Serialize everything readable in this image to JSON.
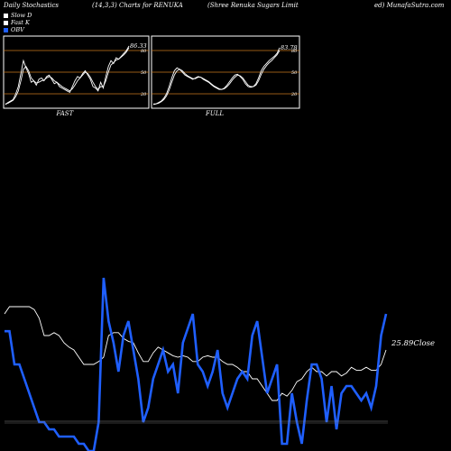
{
  "header": {
    "left": "Daily Stochastics",
    "center_left": "(14,3,3) Charts for RENUKA",
    "center_right": "(Shree  Renuka  Sugars Limit",
    "right": "ed) MunafaSutra.com"
  },
  "legend": [
    {
      "label": "Slow  D",
      "color": "#ffffff"
    },
    {
      "label": "Fast K",
      "color": "#ffffff"
    },
    {
      "label": "OBV",
      "color": "#1f5fff"
    }
  ],
  "colors": {
    "background": "#000000",
    "grid_orange": "#c8781e",
    "obv_blue": "#1f5fff",
    "line_white": "#ffffff"
  },
  "chart_data": [
    {
      "type": "line",
      "panel_label": "FAST",
      "last_value_label": "86.33",
      "ylim": [
        0,
        100
      ],
      "ytick_labels": [
        "80",
        "50",
        "20"
      ],
      "hlines": [
        80,
        50,
        20
      ],
      "series": [
        {
          "values": [
            5,
            8,
            10,
            12,
            20,
            30,
            48,
            66,
            56,
            48,
            36,
            38,
            32,
            40,
            42,
            38,
            44,
            46,
            40,
            34,
            36,
            30,
            28,
            26,
            24,
            22,
            30,
            38,
            44,
            42,
            48,
            52,
            46,
            40,
            30,
            28,
            24,
            36,
            28,
            44,
            58,
            66,
            62,
            70,
            68,
            72,
            76,
            80,
            86.33
          ]
        },
        {
          "values": [
            6,
            7,
            9,
            11,
            16,
            24,
            38,
            54,
            58,
            52,
            42,
            38,
            35,
            36,
            38,
            39,
            42,
            44,
            42,
            38,
            36,
            33,
            30,
            28,
            26,
            24,
            27,
            32,
            38,
            42,
            46,
            50,
            48,
            43,
            36,
            30,
            26,
            30,
            30,
            38,
            50,
            60,
            63,
            67,
            68,
            71,
            74,
            78,
            84
          ]
        }
      ]
    },
    {
      "type": "line",
      "panel_label": "FULL",
      "last_value_label": "83.78",
      "ylim": [
        0,
        100
      ],
      "ytick_labels": [
        "80",
        "50",
        "20"
      ],
      "hlines": [
        80,
        50,
        20
      ],
      "series": [
        {
          "values": [
            5,
            6,
            8,
            10,
            14,
            20,
            30,
            42,
            52,
            56,
            54,
            50,
            46,
            44,
            42,
            40,
            42,
            44,
            43,
            40,
            38,
            36,
            33,
            30,
            28,
            26,
            26,
            28,
            32,
            37,
            42,
            46,
            47,
            44,
            40,
            34,
            30,
            29,
            30,
            34,
            42,
            52,
            58,
            62,
            66,
            69,
            72,
            76,
            83.78
          ]
        },
        {
          "values": [
            6,
            6,
            7,
            9,
            12,
            17,
            25,
            36,
            46,
            52,
            54,
            52,
            48,
            45,
            43,
            41,
            41,
            43,
            43,
            41,
            39,
            37,
            34,
            31,
            29,
            27,
            26,
            27,
            30,
            34,
            39,
            43,
            46,
            45,
            42,
            37,
            32,
            30,
            30,
            32,
            38,
            47,
            54,
            59,
            63,
            66,
            70,
            74,
            80
          ]
        }
      ]
    },
    {
      "type": "line",
      "panel_label": "",
      "close_label": "25.89",
      "close_text": "Close",
      "series": [
        {
          "name": "OBV",
          "values": [
            63,
            63,
            40,
            40,
            30,
            20,
            10,
            0,
            0,
            -5,
            -5,
            -10,
            -10,
            -10,
            -10,
            -15,
            -15,
            -20,
            -20,
            0,
            100,
            70,
            55,
            35,
            60,
            70,
            50,
            30,
            0,
            10,
            30,
            40,
            50,
            35,
            40,
            20,
            55,
            65,
            75,
            40,
            35,
            25,
            35,
            50,
            20,
            10,
            20,
            30,
            35,
            30,
            60,
            70,
            45,
            20,
            30,
            40,
            -15,
            -15,
            20,
            0,
            -15,
            15,
            40,
            40,
            30,
            0,
            25,
            -5,
            20,
            25,
            25,
            20,
            15,
            20,
            10,
            25,
            60,
            75
          ]
        },
        {
          "name": "Close",
          "values": [
            75,
            80,
            80,
            80,
            80,
            80,
            78,
            72,
            60,
            60,
            62,
            60,
            55,
            52,
            50,
            45,
            40,
            40,
            40,
            42,
            45,
            60,
            62,
            62,
            58,
            56,
            55,
            48,
            42,
            42,
            48,
            52,
            50,
            48,
            46,
            45,
            46,
            45,
            42,
            42,
            45,
            46,
            45,
            45,
            42,
            40,
            40,
            38,
            35,
            35,
            30,
            30,
            25,
            20,
            15,
            15,
            20,
            18,
            22,
            28,
            30,
            35,
            38,
            35,
            35,
            32,
            35,
            35,
            32,
            34,
            38,
            36,
            36,
            38,
            36,
            36,
            40,
            50
          ]
        }
      ]
    }
  ]
}
